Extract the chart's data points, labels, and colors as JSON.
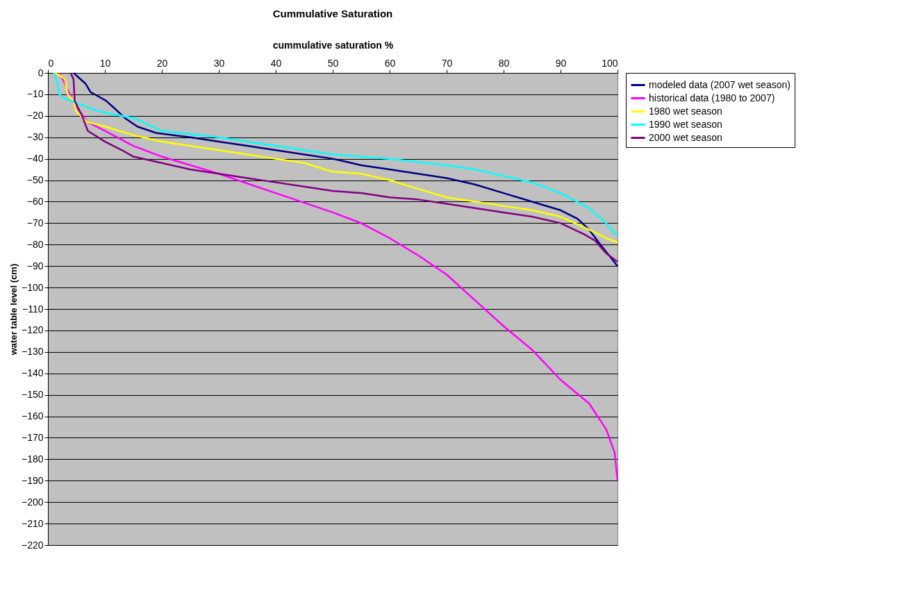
{
  "chart_data": {
    "type": "line",
    "title": "Cummulative Saturation",
    "xlabel": "cummulative saturation %",
    "ylabel": "water table level (cm)",
    "xlim": [
      0,
      100
    ],
    "xticks": [
      0,
      10,
      20,
      30,
      40,
      50,
      60,
      70,
      80,
      90,
      100
    ],
    "ylim": [
      -220,
      0
    ],
    "yticks": [
      0,
      -10,
      -20,
      -30,
      -40,
      -50,
      -60,
      -70,
      -80,
      -90,
      -100,
      -110,
      -120,
      -130,
      -140,
      -150,
      -160,
      -170,
      -180,
      -190,
      -200,
      -210,
      -220
    ],
    "grid": "y",
    "legend": "right",
    "series": [
      {
        "name": "modeled data (2007 wet season)",
        "color": "#000080",
        "x": [
          4.5,
          6.6,
          7.5,
          8.9,
          10.2,
          11.9,
          13.5,
          15.7,
          19,
          25,
          30,
          35,
          40,
          45,
          50,
          55,
          60,
          65,
          70,
          75,
          80,
          85,
          90,
          93,
          95,
          97,
          100
        ],
        "values": [
          0,
          -5,
          -9,
          -11,
          -13,
          -17,
          -21,
          -25,
          -28,
          -30,
          -32,
          -34,
          -36,
          -38,
          -40,
          -43,
          -45,
          -47,
          -49,
          -52,
          -56,
          -60,
          -64,
          -68,
          -73,
          -80,
          -90
        ]
      },
      {
        "name": "historical data (1980 to 2007)",
        "color": "#ff00ff",
        "x": [
          2,
          3,
          4,
          5,
          7,
          10,
          15,
          20,
          25,
          30,
          40,
          50,
          55,
          60,
          65,
          70,
          75,
          80,
          85,
          90,
          95,
          98,
          99.5,
          100
        ],
        "values": [
          0,
          -5,
          -11,
          -16,
          -23,
          -27,
          -34,
          -39,
          -43,
          -47,
          -56,
          -65,
          -70,
          -77,
          -85,
          -94,
          -106,
          -118,
          -129,
          -143,
          -154,
          -166,
          -177,
          -190
        ]
      },
      {
        "name": "1980 wet season",
        "color": "#ffff00",
        "x": [
          1,
          2,
          3,
          3.5,
          4.5,
          5,
          7,
          10,
          15,
          20,
          30,
          40,
          45,
          50,
          55,
          60,
          65,
          70,
          80,
          85,
          90,
          95,
          98,
          100
        ],
        "values": [
          0,
          -1,
          -3,
          -10,
          -13,
          -18,
          -23,
          -25,
          -29,
          -32,
          -36,
          -40,
          -42,
          -46,
          -47,
          -50,
          -54,
          -58,
          -62,
          -64,
          -67,
          -73,
          -77,
          -79
        ]
      },
      {
        "name": "1990 wet season",
        "color": "#00ffff",
        "x": [
          1,
          1.5,
          2,
          3,
          5,
          8,
          10,
          15,
          20,
          30,
          40,
          50,
          60,
          70,
          75,
          80,
          85,
          90,
          95,
          98,
          99.5,
          100
        ],
        "values": [
          0,
          -3,
          -10,
          -12,
          -14,
          -17,
          -18.5,
          -21,
          -27,
          -30,
          -34,
          -38,
          -40,
          -43,
          -45,
          -48,
          -51,
          -56,
          -63,
          -70,
          -75,
          -75
        ]
      },
      {
        "name": "2000 wet season",
        "color": "#800080",
        "x": [
          4,
          4.5,
          4.7,
          6,
          7,
          10,
          13,
          15,
          20,
          25,
          30,
          35,
          40,
          45,
          50,
          55,
          60,
          65,
          70,
          75,
          80,
          85,
          90,
          94,
          96,
          98,
          100
        ],
        "values": [
          0,
          -3,
          -13,
          -20,
          -27,
          -32,
          -36,
          -39,
          -42,
          -45,
          -47,
          -49,
          -51,
          -53,
          -55,
          -56,
          -58,
          -59,
          -61,
          -63,
          -65,
          -67,
          -70,
          -75,
          -78,
          -84,
          -88
        ]
      }
    ]
  }
}
